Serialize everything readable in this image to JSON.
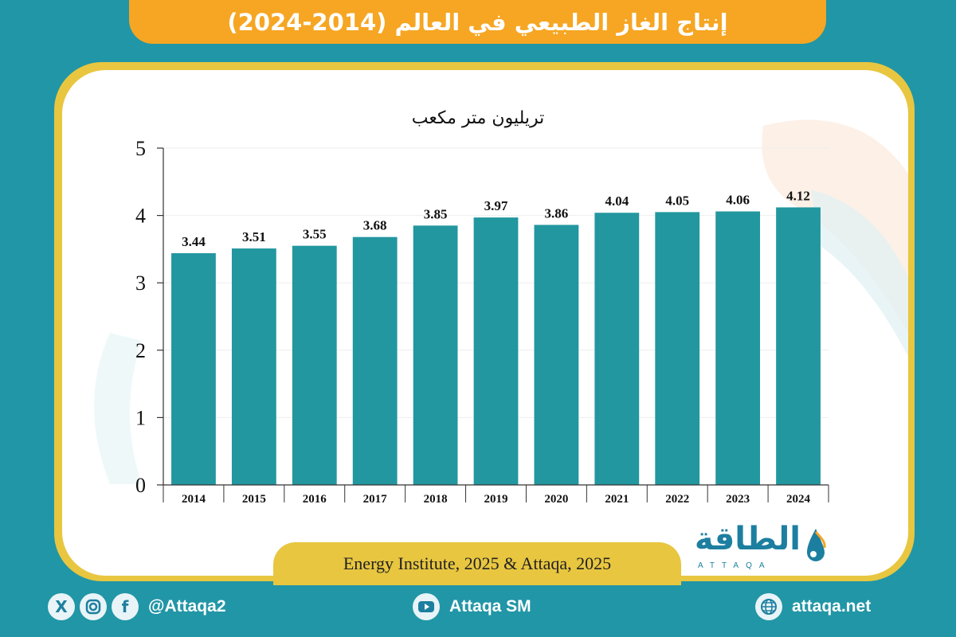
{
  "title": "إنتاج الغاز الطبيعي في العالم (2014-2024)",
  "source": "Energy Institute, 2025 & Attaqa, 2025",
  "logo": {
    "arabic": "الطاقة",
    "english": "ATTAQA"
  },
  "footer": {
    "social_handle": "@Attaqa2",
    "youtube": "Attaqa SM",
    "website": "attaqa.net",
    "icons": [
      "x-icon",
      "instagram-icon",
      "facebook-icon",
      "youtube-icon",
      "globe-icon"
    ]
  },
  "colors": {
    "background": "#2196a6",
    "bar": "#22979f",
    "banner": "#f6a623",
    "frame": "#e8c640",
    "grid": "#eeeeee"
  },
  "chart_data": {
    "type": "bar",
    "title": "",
    "unit_label": "تريليون متر مكعب",
    "categories": [
      "2014",
      "2015",
      "2016",
      "2017",
      "2018",
      "2019",
      "2020",
      "2021",
      "2022",
      "2023",
      "2024"
    ],
    "values": [
      3.44,
      3.51,
      3.55,
      3.68,
      3.85,
      3.97,
      3.86,
      4.04,
      4.05,
      4.06,
      4.12
    ],
    "data_labels": [
      "3.44",
      "3.51",
      "3.55",
      "3.68",
      "3.85",
      "3.97",
      "3.86",
      "4.04",
      "4.05",
      "4.06",
      "4.12"
    ],
    "ylim": [
      0,
      5
    ],
    "yticks": [
      "0",
      "1",
      "2",
      "3",
      "4",
      "5"
    ],
    "grid": true,
    "xlabel": "",
    "ylabel": ""
  }
}
